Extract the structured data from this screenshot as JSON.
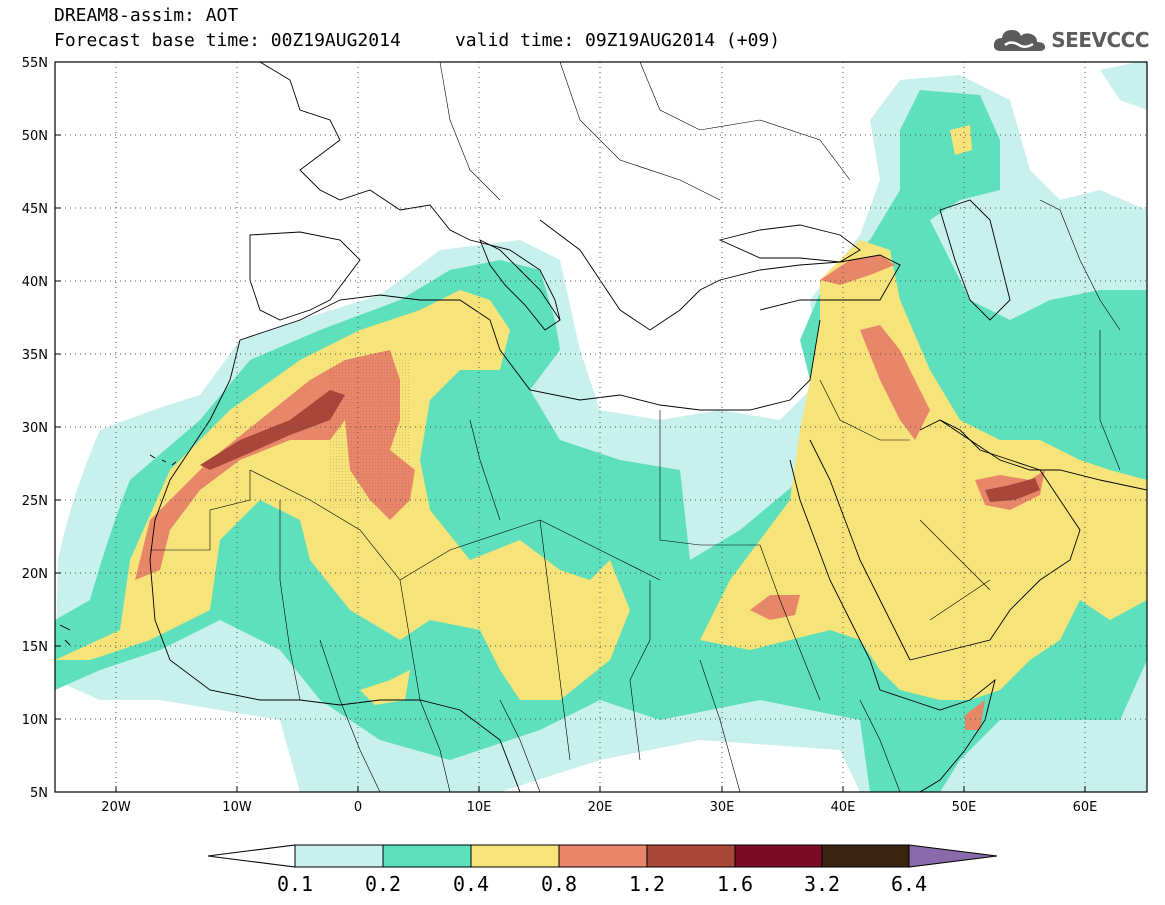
{
  "header": {
    "line1": "DREAM8-assim: AOT",
    "line2": "Forecast base time: 00Z19AUG2014     valid time: 09Z19AUG2014 (+09)"
  },
  "logo": {
    "icon": "cloud-icon",
    "text": "SEEVCCC"
  },
  "map": {
    "projection": "lat-lon",
    "lon_range": [
      -25,
      65
    ],
    "lat_range": [
      5,
      55
    ],
    "grid": "dotted",
    "lat_ticks": [
      "55N",
      "50N",
      "45N",
      "40N",
      "35N",
      "30N",
      "25N",
      "20N",
      "15N",
      "10N",
      "5N"
    ],
    "lon_ticks": [
      "20W",
      "10W",
      "0",
      "10E",
      "20E",
      "30E",
      "40E",
      "50E",
      "60E"
    ]
  },
  "colorbar": {
    "levels": [
      "0.1",
      "0.2",
      "0.4",
      "0.8",
      "1.2",
      "1.6",
      "3.2",
      "6.4"
    ],
    "colors": [
      "#ffffff",
      "#c8f0ec",
      "#5ee0bc",
      "#f6e47a",
      "#e8866a",
      "#a8463a",
      "#7a0a24",
      "#3a2410",
      "#8a6aaa"
    ]
  },
  "palette": {
    "c1": "#c8f0ec",
    "c2": "#5ee0bc",
    "c3": "#f6e47a",
    "c4": "#e8866a",
    "c5": "#a8463a"
  }
}
